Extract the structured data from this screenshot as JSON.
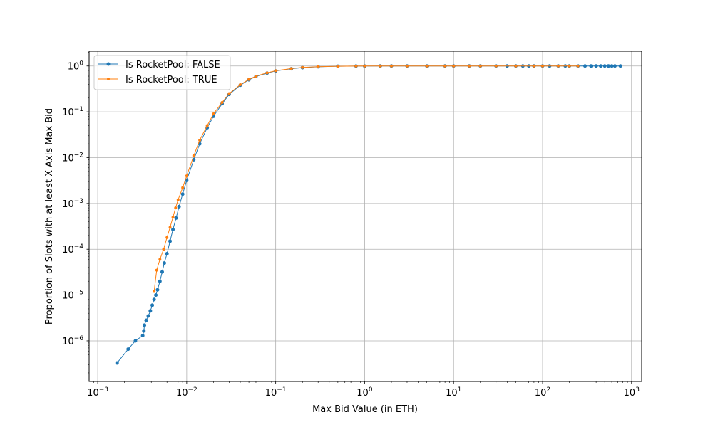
{
  "chart_data": {
    "type": "line",
    "xlabel": "Max Bid Value (in ETH)",
    "ylabel": "Proportion of Slots with at least X Axis Max Bid",
    "xscale": "log",
    "yscale": "log",
    "xlim": [
      0.0008,
      1300
    ],
    "ylim": [
      1.3e-07,
      2.1
    ],
    "grid": true,
    "legend_position": "top-left",
    "x_ticks": [
      {
        "value": 0.001,
        "base": "10",
        "exp": "−3"
      },
      {
        "value": 0.01,
        "base": "10",
        "exp": "−2"
      },
      {
        "value": 0.1,
        "base": "10",
        "exp": "−1"
      },
      {
        "value": 1,
        "base": "10",
        "exp": "0"
      },
      {
        "value": 10,
        "base": "10",
        "exp": "1"
      },
      {
        "value": 100,
        "base": "10",
        "exp": "2"
      },
      {
        "value": 1000,
        "base": "10",
        "exp": "3"
      }
    ],
    "y_ticks": [
      {
        "value": 1e-06,
        "base": "10",
        "exp": "−6"
      },
      {
        "value": 1e-05,
        "base": "10",
        "exp": "−5"
      },
      {
        "value": 0.0001,
        "base": "10",
        "exp": "−4"
      },
      {
        "value": 0.001,
        "base": "10",
        "exp": "−3"
      },
      {
        "value": 0.01,
        "base": "10",
        "exp": "−2"
      },
      {
        "value": 0.1,
        "base": "10",
        "exp": "−1"
      },
      {
        "value": 1,
        "base": "10",
        "exp": "0"
      }
    ],
    "series": [
      {
        "name": "Is RocketPool: FALSE",
        "color": "#1f77b4",
        "marker": "circle",
        "x": [
          0.00165,
          0.0022,
          0.00265,
          0.0032,
          0.0033,
          0.00335,
          0.0035,
          0.0037,
          0.0039,
          0.0041,
          0.0043,
          0.0045,
          0.0047,
          0.005,
          0.0053,
          0.0056,
          0.006,
          0.0065,
          0.007,
          0.0076,
          0.0082,
          0.009,
          0.01,
          0.012,
          0.014,
          0.017,
          0.02,
          0.025,
          0.03,
          0.04,
          0.05,
          0.06,
          0.08,
          0.1,
          0.15,
          0.2,
          0.3,
          0.5,
          0.8,
          1,
          1.5,
          2,
          3,
          5,
          8,
          10,
          15,
          20,
          30,
          40,
          50,
          60,
          70,
          80,
          100,
          120,
          150,
          180,
          200,
          250,
          300,
          350,
          400,
          450,
          500,
          550,
          600,
          650,
          750
        ],
        "y": [
          3.3e-07,
          6.6e-07,
          1e-06,
          1.3e-06,
          1.65e-06,
          2.2e-06,
          2.8e-06,
          3.5e-06,
          4.5e-06,
          6e-06,
          8e-06,
          1e-05,
          1.3e-05,
          2e-05,
          3.2e-05,
          5e-05,
          8e-05,
          0.00015,
          0.00027,
          0.00048,
          0.00085,
          0.0016,
          0.0032,
          0.009,
          0.02,
          0.045,
          0.08,
          0.15,
          0.24,
          0.38,
          0.5,
          0.59,
          0.7,
          0.78,
          0.87,
          0.92,
          0.96,
          0.985,
          0.995,
          0.997,
          0.999,
          1,
          1,
          1,
          1,
          1,
          1,
          1,
          1,
          1,
          1,
          1,
          1,
          1,
          1,
          1,
          1,
          1,
          1,
          1,
          1,
          1,
          1,
          1,
          1,
          1,
          1,
          1,
          1
        ]
      },
      {
        "name": "Is RocketPool: TRUE",
        "color": "#ff7f0e",
        "marker": "circle",
        "x": [
          0.0043,
          0.0046,
          0.005,
          0.0055,
          0.006,
          0.0065,
          0.007,
          0.0075,
          0.008,
          0.009,
          0.01,
          0.012,
          0.014,
          0.017,
          0.02,
          0.025,
          0.03,
          0.04,
          0.05,
          0.06,
          0.08,
          0.1,
          0.15,
          0.2,
          0.3,
          0.5,
          0.8,
          1,
          1.5,
          2,
          3,
          5,
          8,
          10,
          15,
          20,
          30,
          50,
          80,
          100,
          150,
          200,
          250
        ],
        "y": [
          1.2e-05,
          3.5e-05,
          6e-05,
          0.0001,
          0.00018,
          0.0003,
          0.0005,
          0.0008,
          0.0012,
          0.0022,
          0.004,
          0.011,
          0.024,
          0.05,
          0.09,
          0.16,
          0.25,
          0.39,
          0.51,
          0.6,
          0.71,
          0.79,
          0.88,
          0.93,
          0.965,
          0.987,
          0.996,
          0.998,
          0.999,
          1,
          1,
          1,
          1,
          1,
          1,
          1,
          1,
          1,
          1,
          1,
          1,
          1,
          1
        ]
      }
    ]
  }
}
